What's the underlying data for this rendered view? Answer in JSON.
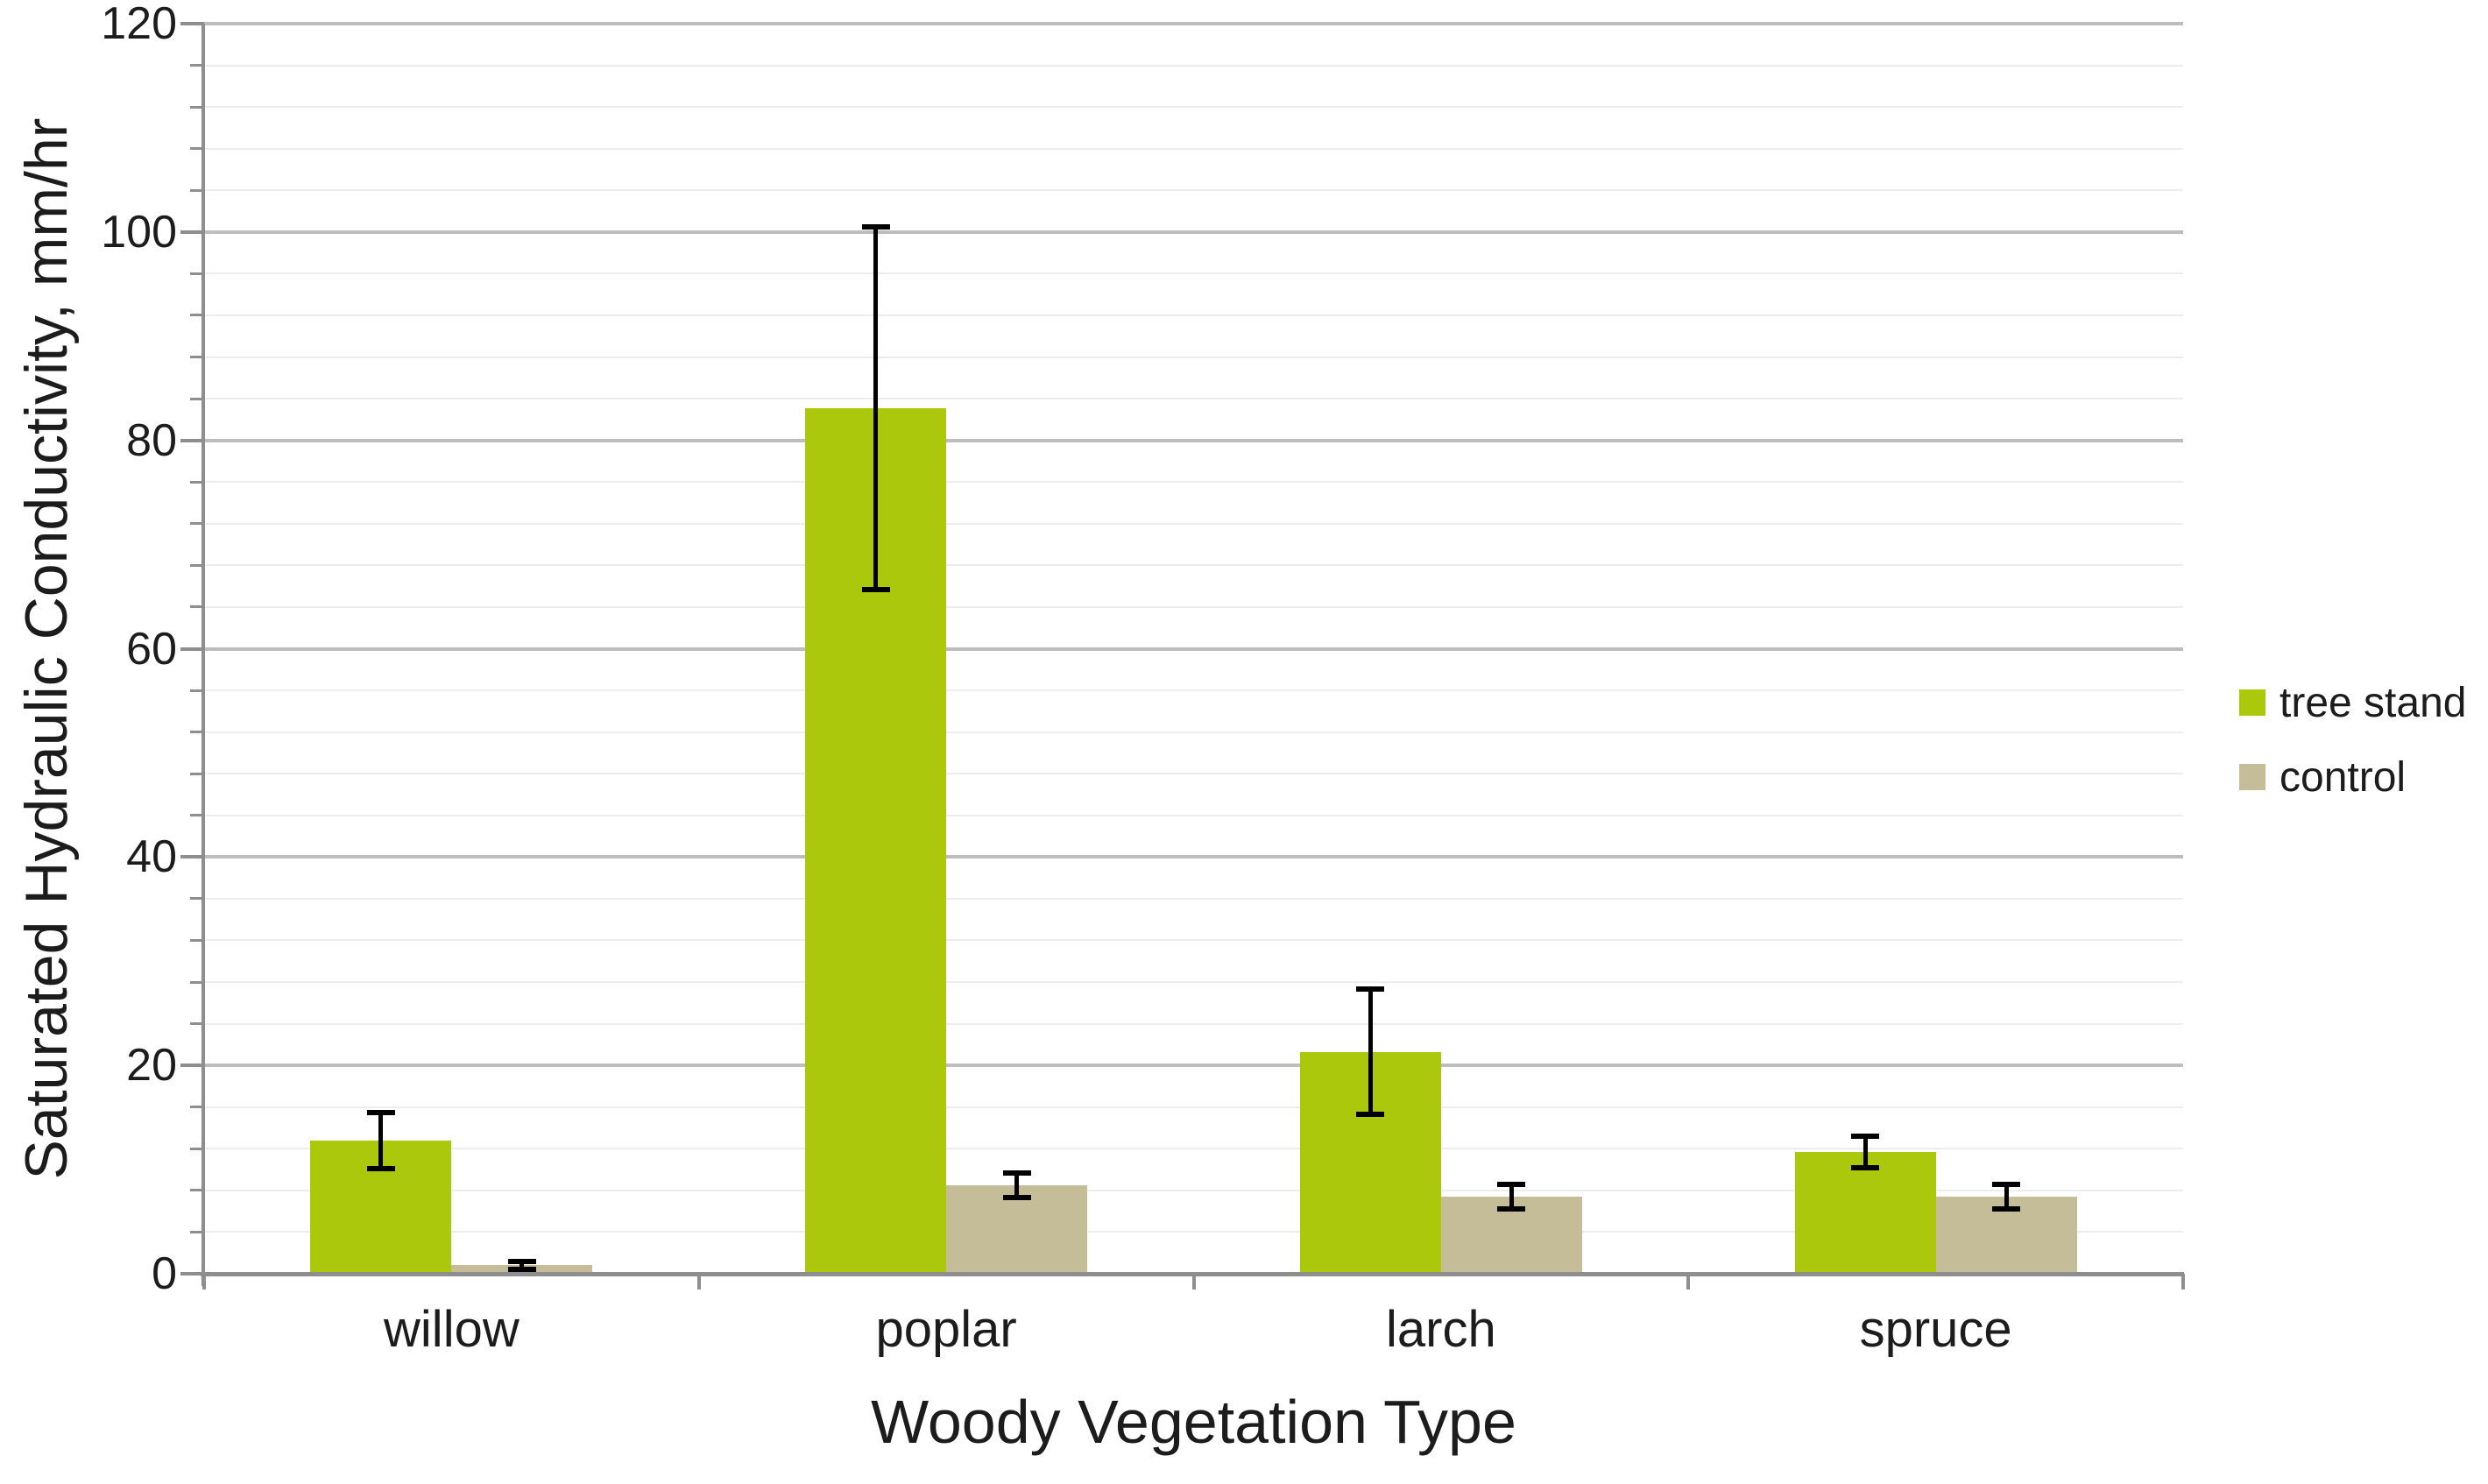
{
  "chart_data": {
    "type": "bar",
    "title": "",
    "categories": [
      "willow",
      "poplar",
      "larch",
      "spruce"
    ],
    "series": [
      {
        "name": "tree stand",
        "color": "#ABC80D",
        "values": [
          12.8,
          83.1,
          21.3,
          11.7
        ],
        "errors": [
          2.7,
          17.4,
          6.0,
          1.5
        ]
      },
      {
        "name": "control",
        "color": "#C5BD97",
        "values": [
          0.8,
          8.5,
          7.4,
          7.4
        ],
        "errors": [
          0.4,
          1.2,
          1.2,
          1.2
        ]
      }
    ],
    "xlabel": "Woody Vegetation Type",
    "ylabel": "Saturated Hydraulic Conductivity, mm/hr",
    "ylim": [
      0,
      120
    ],
    "y_major": 20,
    "y_minor": 4,
    "y_tick_labels": [
      "0",
      "20",
      "40",
      "60",
      "80",
      "100",
      "120"
    ],
    "grid": {
      "major": true,
      "minor": true,
      "orientation": "horizontal"
    },
    "legend_position": "right-middle",
    "error_bar_color": "#000000",
    "axis_color": "#8E8E8E",
    "major_grid_color": "#BDBDBD",
    "minor_grid_color": "#EDEDED",
    "background": "#FFFFFF"
  }
}
